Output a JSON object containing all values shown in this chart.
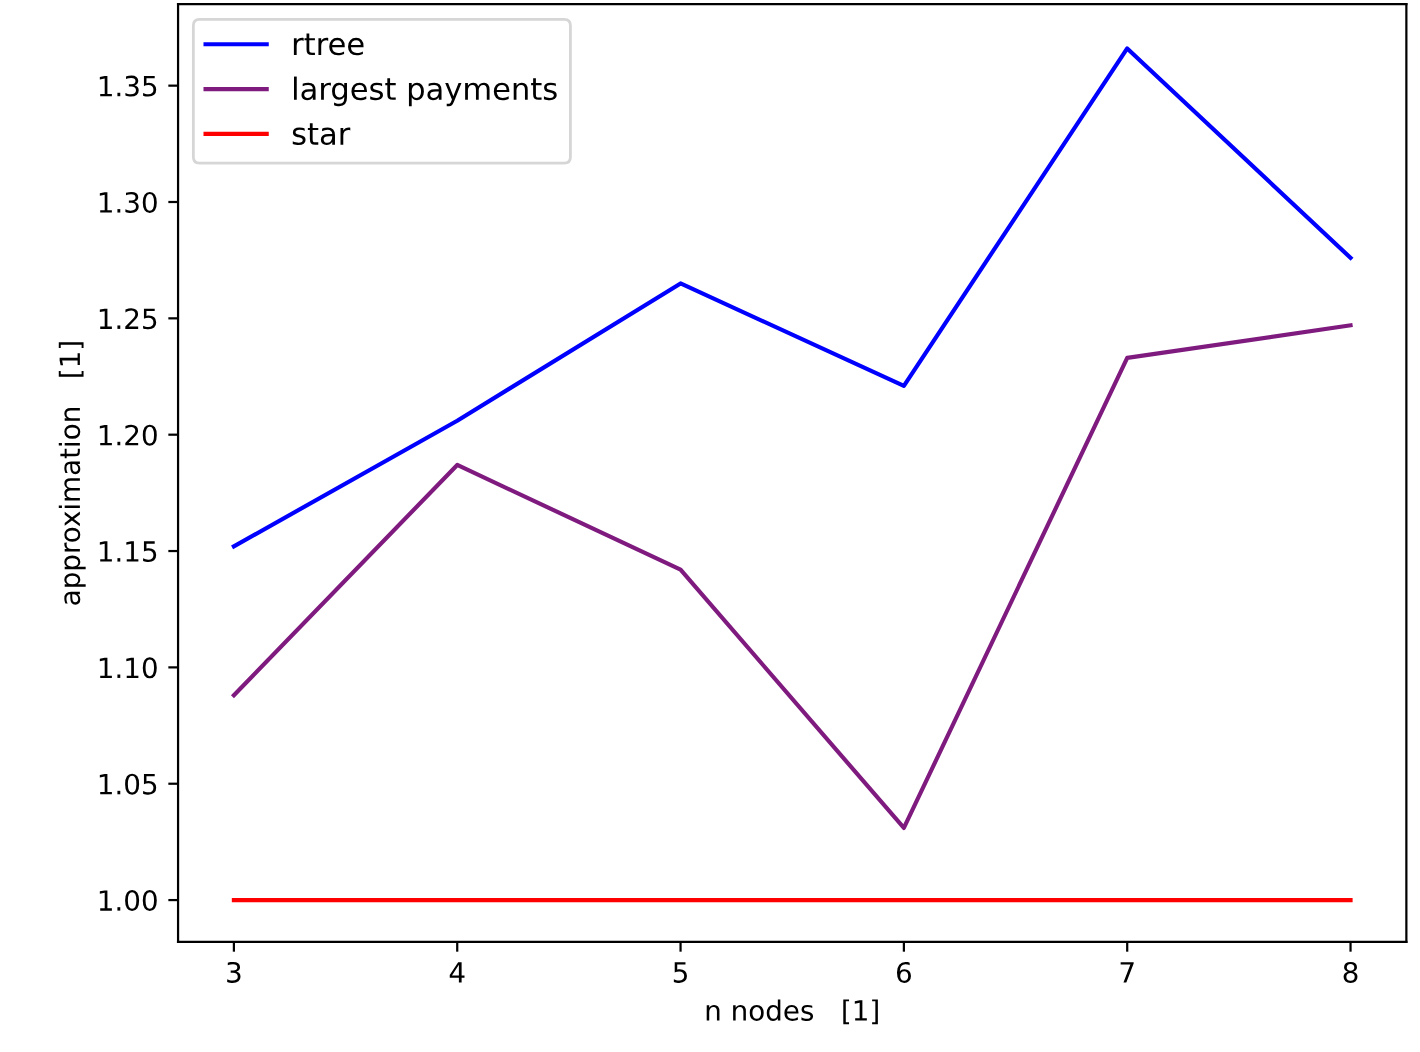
{
  "chart_data": {
    "type": "line",
    "xlabel": "n nodes   [1]",
    "ylabel": "approximation   [1]",
    "x": [
      3,
      4,
      5,
      6,
      7,
      8
    ],
    "series": [
      {
        "name": "rtree",
        "color": "#0000ff",
        "values": [
          1.152,
          1.206,
          1.265,
          1.221,
          1.366,
          1.276
        ]
      },
      {
        "name": "largest payments",
        "color": "#7f1a7f",
        "values": [
          1.088,
          1.187,
          1.142,
          1.031,
          1.233,
          1.247
        ]
      },
      {
        "name": "star",
        "color": "#ff0000",
        "values": [
          1.0,
          1.0,
          1.0,
          1.0,
          1.0,
          1.0
        ]
      }
    ],
    "xlim": [
      2.75,
      8.25
    ],
    "xticks": [
      3,
      4,
      5,
      6,
      7,
      8
    ],
    "ylim": [
      0.982,
      1.385
    ],
    "yticks": [
      {
        "value": 1.0,
        "label": "1.00"
      },
      1.05,
      {
        "value": 1.1,
        "label": "1.10"
      },
      1.15,
      {
        "value": 1.2,
        "label": "1.20"
      },
      1.25,
      {
        "value": 1.3,
        "label": "1.30"
      },
      1.35
    ],
    "grid": false,
    "legend": "top left",
    "marker": "none",
    "line_style": "solid"
  }
}
